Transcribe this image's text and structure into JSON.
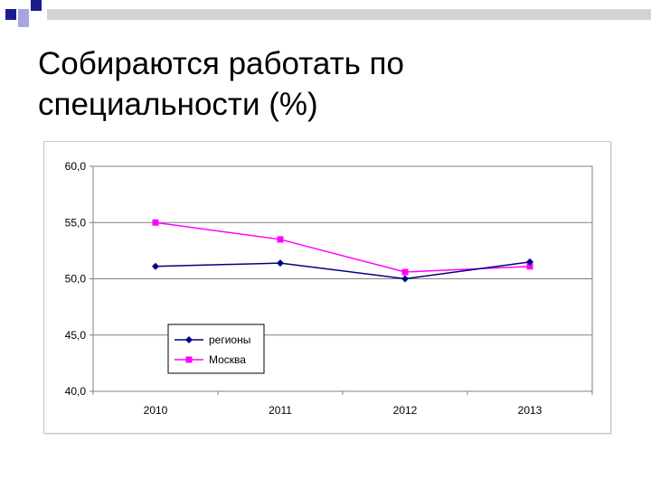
{
  "slide": {
    "title_line1": "Собираются работать по",
    "title_line2": "специальности (%)"
  },
  "theme": {
    "square_dark": "#1c1c8c",
    "square_light": "#a6a6de",
    "band": "#d3d3d3"
  },
  "chart_data": {
    "type": "line",
    "title": "",
    "xlabel": "",
    "ylabel": "",
    "categories": [
      "2010",
      "2011",
      "2012",
      "2013"
    ],
    "ylim": [
      40.0,
      60.0
    ],
    "yticks": [
      "40,0",
      "45,0",
      "50,0",
      "55,0",
      "60,0"
    ],
    "grid": true,
    "legend_position": "bottom-left",
    "series": [
      {
        "name": "регионы",
        "values": [
          51.1,
          51.4,
          50.0,
          51.5
        ],
        "color": "#000080",
        "marker": "diamond"
      },
      {
        "name": "Москва",
        "values": [
          55.0,
          53.5,
          50.6,
          51.1
        ],
        "color": "#ff00ff",
        "marker": "square"
      }
    ]
  }
}
